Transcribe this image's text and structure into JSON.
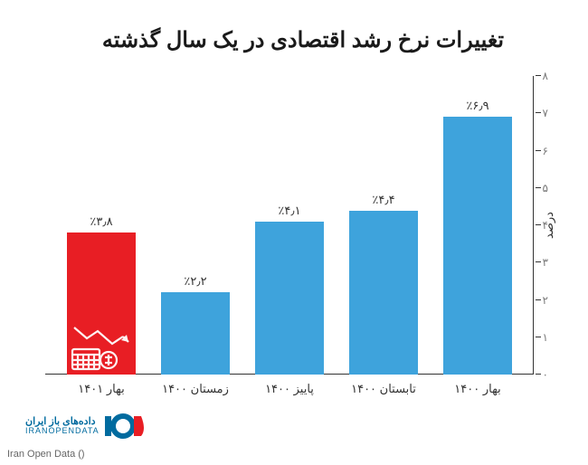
{
  "chart": {
    "type": "bar",
    "title": "تغییرات نرخ رشد اقتصادی در یک سال گذشته",
    "title_fontsize": 24,
    "title_color": "#1a1a1a",
    "ylabel": "درصد",
    "ylabel_fontsize": 13,
    "ylim": [
      0,
      8
    ],
    "ytick_step": 1,
    "yticks": [
      "۰",
      "۱",
      "۲",
      "۳",
      "۴",
      "۵",
      "۶",
      "۷",
      "۸"
    ],
    "categories": [
      "بهار ۱۴۰۰",
      "تابستان ۱۴۰۰",
      "پاییز ۱۴۰۰",
      "زمستان ۱۴۰۰",
      "بهار ۱۴۰۱"
    ],
    "values": [
      6.9,
      4.4,
      4.1,
      2.2,
      3.8
    ],
    "value_labels": [
      "٪۶٫۹",
      "٪۴٫۴",
      "٪۴٫۱",
      "٪۲٫۲",
      "٪۳٫۸"
    ],
    "bar_colors": [
      "#3ea3dc",
      "#3ea3dc",
      "#3ea3dc",
      "#3ea3dc",
      "#e81e24"
    ],
    "bar_width": 0.74,
    "value_label_fontsize": 13,
    "value_label_color": "#333333",
    "xaxis_label_fontsize": 13,
    "xaxis_label_color": "#333333",
    "ytick_label_color": "#7a7a7a",
    "axis_color": "#333333",
    "background_color": "#ffffff",
    "highlight_bar_index": 4,
    "highlight_icon": "decline-chart-icon",
    "highlight_icon_color": "#ffffff"
  },
  "branding": {
    "fa_line": "داده‌های باز ایران",
    "en_line": "IRANOPENDATA",
    "logo_text": "IOD",
    "logo_color_primary": "#006b9f",
    "logo_color_accent": "#e81e24"
  },
  "caption": "Iran Open Data ()"
}
